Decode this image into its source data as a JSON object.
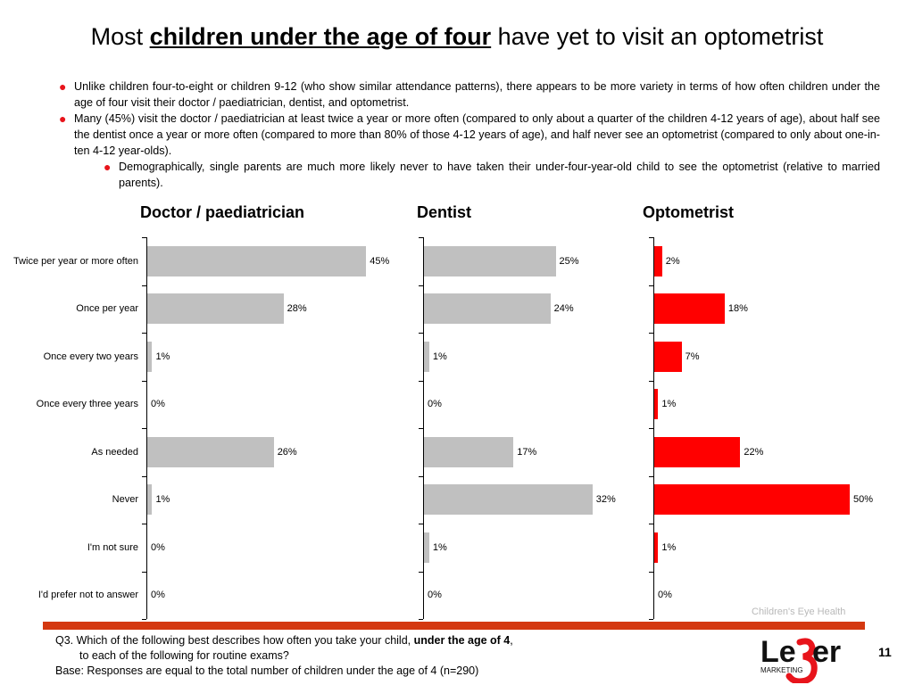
{
  "title": {
    "before": "Most ",
    "emphasis": "children under the age of four",
    "after": " have yet to visit an optometrist"
  },
  "bullets": [
    "Unlike children four-to-eight or children 9-12 (who show similar attendance patterns), there appears to be more variety in terms of how often children under the age of four visit their doctor / paediatrician, dentist, and optometrist.",
    "Many (45%) visit the doctor / paediatrician at least twice a year or more often (compared to only about a quarter of the children 4-12 years of age), about half see the dentist once a year or more often (compared to more than 80% of those 4-12 years of age), and half never see an optometrist (compared to only about one-in-ten 4-12 year-olds)."
  ],
  "sub_bullet": "Demographically, single parents are much more likely never to have taken their under-four-year-old child to see the optometrist (relative to married parents).",
  "chart_data": {
    "type": "bar",
    "orientation": "horizontal",
    "categories": [
      "Twice per year or more often",
      "Once per year",
      "Once every two years",
      "Once every three years",
      "As needed",
      "Never",
      "I'm not sure",
      "I'd prefer not to answer"
    ],
    "panels": [
      {
        "name": "Doctor / paediatrician",
        "color": "#c0c0c0",
        "values": [
          45,
          28,
          1,
          0,
          26,
          1,
          0,
          0
        ]
      },
      {
        "name": "Dentist",
        "color": "#c0c0c0",
        "values": [
          25,
          24,
          1,
          0,
          17,
          32,
          1,
          0
        ]
      },
      {
        "name": "Optometrist",
        "color": "#ff0000",
        "values": [
          2,
          18,
          7,
          1,
          22,
          50,
          1,
          0
        ]
      }
    ],
    "value_suffix": "%"
  },
  "footer_tag": "Children's Eye Health",
  "question": {
    "line1_before": "Q3. Which of the following best describes how often you take your child, ",
    "line1_bold": "under the age of 4",
    "line1_after": ",",
    "line2": "to each of the following for routine exams?",
    "base": "Base: Responses are equal to the total number of children under the age of 4 (n=290)"
  },
  "logo": {
    "text_le": "Le",
    "text_ger": "er",
    "sub": "MARKETING"
  },
  "page_number": "11"
}
